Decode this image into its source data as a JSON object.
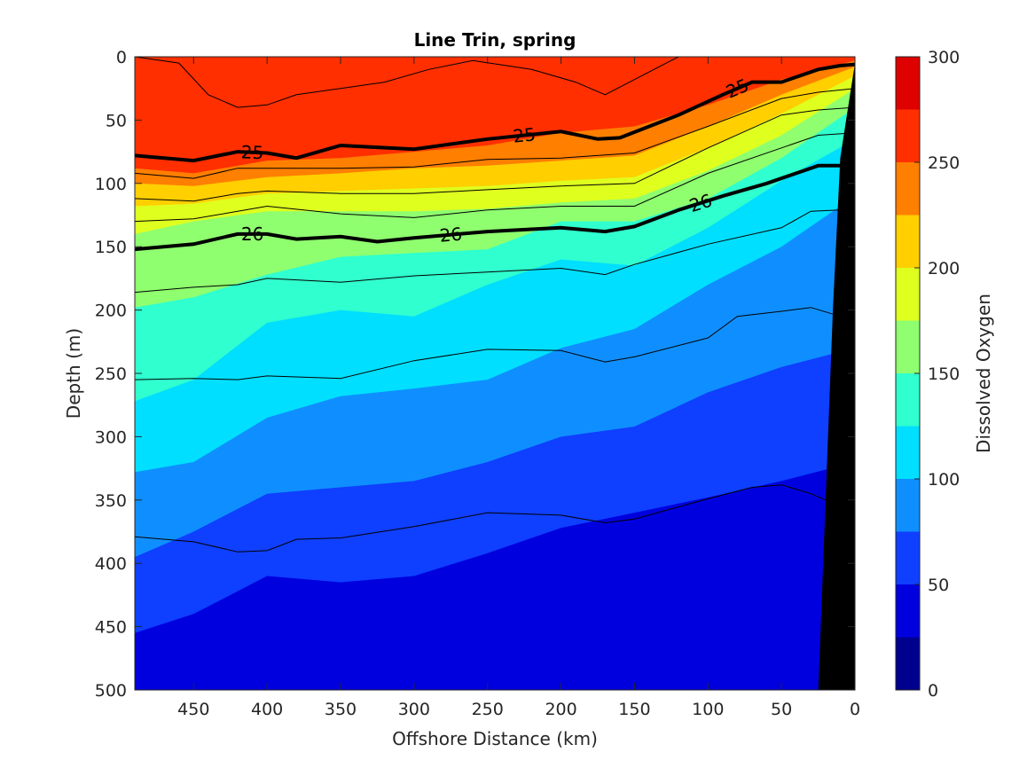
{
  "chart_data": {
    "type": "filled-contour",
    "title": "Line Trin, spring",
    "xlabel": "Offshore Distance (km)",
    "ylabel": "Depth (m)",
    "colorbar_label": "Dissolved Oxygen",
    "xlim": [
      490,
      0
    ],
    "x_reversed": true,
    "ylim": [
      0,
      500
    ],
    "y_reversed": true,
    "xticks": [
      450,
      400,
      350,
      300,
      250,
      200,
      150,
      100,
      50,
      0
    ],
    "xtick_labels": [
      "450",
      "400",
      "350",
      "300",
      "250",
      "200",
      "150",
      "100",
      "50",
      "0"
    ],
    "yticks": [
      0,
      50,
      100,
      150,
      200,
      250,
      300,
      350,
      400,
      450,
      500
    ],
    "ytick_labels": [
      "0",
      "50",
      "100",
      "150",
      "200",
      "250",
      "300",
      "350",
      "400",
      "450",
      "500"
    ],
    "colorbar": {
      "range": [
        0,
        300
      ],
      "levels": [
        0,
        25,
        50,
        75,
        100,
        125,
        150,
        175,
        200,
        225,
        250,
        275,
        300
      ],
      "ticks": [
        0,
        50,
        100,
        150,
        200,
        250,
        300
      ],
      "tick_labels": [
        "0",
        "50",
        "100",
        "150",
        "200",
        "250",
        "300"
      ],
      "colors": [
        "#00008f",
        "#0000df",
        "#0f3fff",
        "#0f8fff",
        "#00dfff",
        "#30ffcf",
        "#8fff6f",
        "#dfff1f",
        "#ffcf00",
        "#ff7f00",
        "#ff2f00",
        "#df0000"
      ]
    },
    "oxygen_contours": [
      {
        "level": 250,
        "depth": [
          [
            490,
            88
          ],
          [
            450,
            92
          ],
          [
            400,
            82
          ],
          [
            350,
            80
          ],
          [
            300,
            75
          ],
          [
            250,
            70
          ],
          [
            200,
            60
          ],
          [
            150,
            55
          ],
          [
            100,
            38
          ],
          [
            50,
            18
          ],
          [
            0,
            3
          ]
        ]
      },
      {
        "level": 225,
        "depth": [
          [
            490,
            100
          ],
          [
            450,
            102
          ],
          [
            400,
            95
          ],
          [
            350,
            92
          ],
          [
            300,
            88
          ],
          [
            250,
            86
          ],
          [
            200,
            82
          ],
          [
            150,
            78
          ],
          [
            100,
            55
          ],
          [
            50,
            30
          ],
          [
            0,
            8
          ]
        ]
      },
      {
        "level": 200,
        "depth": [
          [
            490,
            118
          ],
          [
            450,
            116
          ],
          [
            400,
            108
          ],
          [
            350,
            106
          ],
          [
            300,
            104
          ],
          [
            250,
            102
          ],
          [
            200,
            98
          ],
          [
            150,
            95
          ],
          [
            100,
            72
          ],
          [
            50,
            45
          ],
          [
            0,
            15
          ]
        ]
      },
      {
        "level": 175,
        "depth": [
          [
            490,
            140
          ],
          [
            450,
            130
          ],
          [
            400,
            122
          ],
          [
            350,
            122
          ],
          [
            300,
            122
          ],
          [
            250,
            120
          ],
          [
            200,
            115
          ],
          [
            150,
            112
          ],
          [
            100,
            90
          ],
          [
            50,
            62
          ],
          [
            0,
            25
          ]
        ]
      },
      {
        "level": 150,
        "depth": [
          [
            490,
            198
          ],
          [
            450,
            190
          ],
          [
            400,
            172
          ],
          [
            350,
            158
          ],
          [
            300,
            155
          ],
          [
            250,
            152
          ],
          [
            200,
            130
          ],
          [
            150,
            130
          ],
          [
            100,
            112
          ],
          [
            50,
            80
          ],
          [
            0,
            40
          ]
        ]
      },
      {
        "level": 125,
        "depth": [
          [
            490,
            272
          ],
          [
            450,
            255
          ],
          [
            400,
            210
          ],
          [
            350,
            200
          ],
          [
            300,
            205
          ],
          [
            250,
            180
          ],
          [
            200,
            160
          ],
          [
            150,
            165
          ],
          [
            100,
            135
          ],
          [
            50,
            98
          ],
          [
            0,
            65
          ]
        ]
      },
      {
        "level": 100,
        "depth": [
          [
            490,
            328
          ],
          [
            450,
            320
          ],
          [
            400,
            285
          ],
          [
            350,
            268
          ],
          [
            300,
            262
          ],
          [
            250,
            255
          ],
          [
            200,
            230
          ],
          [
            150,
            215
          ],
          [
            100,
            180
          ],
          [
            50,
            150
          ],
          [
            0,
            110
          ]
        ]
      },
      {
        "level": 75,
        "depth": [
          [
            490,
            395
          ],
          [
            450,
            375
          ],
          [
            400,
            345
          ],
          [
            350,
            340
          ],
          [
            300,
            335
          ],
          [
            250,
            320
          ],
          [
            200,
            300
          ],
          [
            150,
            292
          ],
          [
            100,
            265
          ],
          [
            50,
            245
          ],
          [
            0,
            230
          ]
        ]
      },
      {
        "level": 50,
        "depth": [
          [
            490,
            455
          ],
          [
            450,
            440
          ],
          [
            400,
            410
          ],
          [
            350,
            415
          ],
          [
            300,
            410
          ],
          [
            250,
            392
          ],
          [
            200,
            372
          ],
          [
            150,
            360
          ],
          [
            100,
            348
          ],
          [
            50,
            335
          ],
          [
            0,
            320
          ]
        ]
      }
    ],
    "density_contours": [
      {
        "label": "",
        "depth": [
          [
            490,
            0
          ],
          [
            460,
            5
          ],
          [
            440,
            30
          ],
          [
            420,
            40
          ],
          [
            400,
            38
          ],
          [
            380,
            30
          ],
          [
            350,
            25
          ],
          [
            320,
            20
          ],
          [
            290,
            10
          ],
          [
            260,
            3
          ],
          [
            220,
            10
          ],
          [
            190,
            20
          ],
          [
            170,
            30
          ],
          [
            150,
            18
          ],
          [
            120,
            0
          ]
        ]
      },
      {
        "label": "25",
        "bold": true,
        "depth": [
          [
            490,
            78
          ],
          [
            450,
            82
          ],
          [
            420,
            75
          ],
          [
            400,
            76
          ],
          [
            380,
            80
          ],
          [
            350,
            70
          ],
          [
            300,
            73
          ],
          [
            250,
            65
          ],
          [
            200,
            59
          ],
          [
            175,
            65
          ],
          [
            160,
            64
          ],
          [
            120,
            46
          ],
          [
            90,
            30
          ],
          [
            70,
            20
          ],
          [
            50,
            20
          ],
          [
            25,
            10
          ],
          [
            10,
            7
          ],
          [
            0,
            6
          ]
        ]
      },
      {
        "label": "",
        "depth": [
          [
            490,
            92
          ],
          [
            450,
            96
          ],
          [
            420,
            88
          ],
          [
            400,
            88
          ],
          [
            350,
            88
          ],
          [
            300,
            87
          ],
          [
            250,
            81
          ],
          [
            200,
            80
          ],
          [
            150,
            76
          ],
          [
            100,
            55
          ],
          [
            50,
            33
          ],
          [
            25,
            28
          ],
          [
            0,
            25
          ]
        ]
      },
      {
        "label": "",
        "depth": [
          [
            490,
            112
          ],
          [
            450,
            114
          ],
          [
            420,
            108
          ],
          [
            400,
            106
          ],
          [
            350,
            108
          ],
          [
            300,
            108
          ],
          [
            250,
            105
          ],
          [
            200,
            102
          ],
          [
            150,
            100
          ],
          [
            100,
            72
          ],
          [
            50,
            46
          ],
          [
            25,
            42
          ],
          [
            0,
            40
          ]
        ]
      },
      {
        "label": "",
        "depth": [
          [
            490,
            130
          ],
          [
            450,
            128
          ],
          [
            420,
            122
          ],
          [
            400,
            118
          ],
          [
            350,
            124
          ],
          [
            300,
            127
          ],
          [
            250,
            121
          ],
          [
            200,
            118
          ],
          [
            150,
            118
          ],
          [
            100,
            92
          ],
          [
            50,
            72
          ],
          [
            25,
            62
          ],
          [
            0,
            60
          ]
        ]
      },
      {
        "label": "26",
        "bold": true,
        "depth": [
          [
            490,
            152
          ],
          [
            450,
            148
          ],
          [
            420,
            140
          ],
          [
            400,
            140
          ],
          [
            380,
            144
          ],
          [
            350,
            142
          ],
          [
            325,
            146
          ],
          [
            300,
            143
          ],
          [
            250,
            138
          ],
          [
            200,
            135
          ],
          [
            170,
            138
          ],
          [
            150,
            134
          ],
          [
            120,
            121
          ],
          [
            90,
            110
          ],
          [
            60,
            100
          ],
          [
            40,
            92
          ],
          [
            25,
            86
          ],
          [
            10,
            86
          ]
        ]
      },
      {
        "label": "",
        "depth": [
          [
            490,
            186
          ],
          [
            450,
            182
          ],
          [
            420,
            180
          ],
          [
            400,
            175
          ],
          [
            350,
            178
          ],
          [
            300,
            173
          ],
          [
            250,
            170
          ],
          [
            200,
            167
          ],
          [
            170,
            172
          ],
          [
            150,
            164
          ],
          [
            100,
            148
          ],
          [
            50,
            135
          ],
          [
            30,
            122
          ],
          [
            10,
            121
          ]
        ]
      },
      {
        "label": "",
        "depth": [
          [
            490,
            255
          ],
          [
            450,
            254
          ],
          [
            420,
            255
          ],
          [
            400,
            252
          ],
          [
            350,
            254
          ],
          [
            300,
            240
          ],
          [
            250,
            231
          ],
          [
            200,
            232
          ],
          [
            170,
            241
          ],
          [
            150,
            237
          ],
          [
            100,
            222
          ],
          [
            80,
            205
          ],
          [
            50,
            201
          ],
          [
            30,
            198
          ],
          [
            10,
            205
          ]
        ]
      },
      {
        "label": "",
        "depth": [
          [
            490,
            379
          ],
          [
            450,
            383
          ],
          [
            420,
            391
          ],
          [
            400,
            390
          ],
          [
            380,
            381
          ],
          [
            350,
            380
          ],
          [
            300,
            371
          ],
          [
            250,
            360
          ],
          [
            200,
            362
          ],
          [
            170,
            368
          ],
          [
            150,
            365
          ],
          [
            100,
            349
          ],
          [
            70,
            340
          ],
          [
            50,
            338
          ],
          [
            30,
            345
          ],
          [
            20,
            350
          ]
        ]
      }
    ],
    "bottom_topography": {
      "color": "#000000",
      "outline": [
        [
          0,
          5
        ],
        [
          10,
          80
        ],
        [
          15,
          200
        ],
        [
          20,
          350
        ],
        [
          25,
          500
        ],
        [
          0,
          500
        ]
      ]
    }
  }
}
